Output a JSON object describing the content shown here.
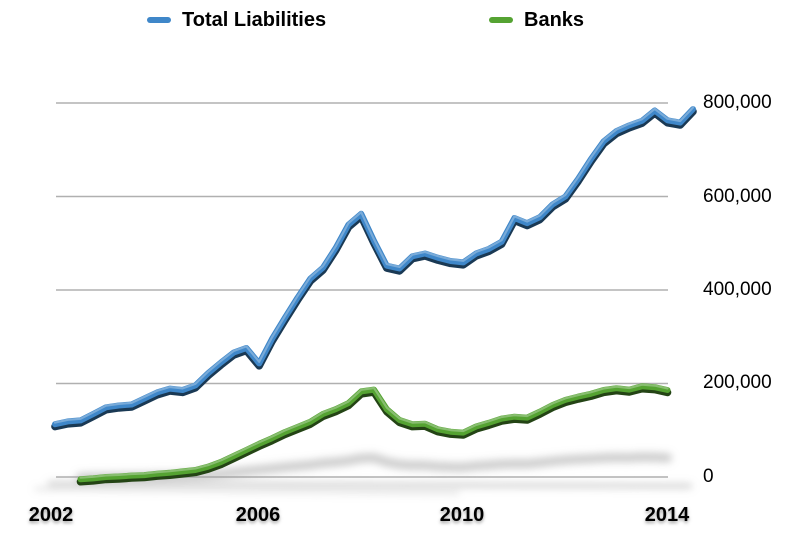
{
  "chart_data": {
    "type": "line",
    "title": "",
    "background_color": "#ffffff",
    "grid": true,
    "gridline_color": "#b0b0b0",
    "legend_position": "top",
    "x_axis": {
      "unit": "quarter",
      "start_label": "2002Q1",
      "ticks": [
        {
          "label": "2002",
          "quarter_index": 0
        },
        {
          "label": "2006",
          "quarter_index": 16
        },
        {
          "label": "2010",
          "quarter_index": 32
        },
        {
          "label": "2014",
          "quarter_index": 48
        }
      ]
    },
    "y_axis": {
      "min": 0,
      "max": 800000,
      "gridline_values": [
        800000,
        600000,
        400000,
        200000,
        0
      ],
      "tick_labels": [
        "800,000",
        "600,000",
        "400,000",
        "200,000",
        "0"
      ],
      "labels_position": "right"
    },
    "series": [
      {
        "name": "Total Liabilities",
        "color": "#3f87c9",
        "start_quarter_index": 0,
        "values": [
          113000,
          119000,
          121000,
          135000,
          149000,
          153000,
          155000,
          168000,
          181000,
          189000,
          186000,
          196000,
          222000,
          245000,
          266000,
          276000,
          243000,
          295000,
          340000,
          383000,
          424000,
          448000,
          490000,
          540000,
          563000,
          505000,
          452000,
          446000,
          472000,
          478000,
          469000,
          462000,
          459000,
          478000,
          488000,
          503000,
          554000,
          543000,
          556000,
          583000,
          600000,
          638000,
          680000,
          718000,
          740000,
          752000,
          762000,
          784000,
          763000,
          758000,
          787000
        ]
      },
      {
        "name": "Banks",
        "color": "#55a332",
        "start_quarter_index": 2,
        "values": [
          -5000,
          -3000,
          0,
          1000,
          3000,
          4000,
          7000,
          9000,
          12000,
          15000,
          22000,
          32000,
          45000,
          58000,
          71000,
          83000,
          96000,
          107000,
          118000,
          135000,
          145000,
          158000,
          183000,
          187000,
          145000,
          122000,
          113000,
          114000,
          102000,
          97000,
          95000,
          108000,
          116000,
          125000,
          129000,
          127000,
          140000,
          154000,
          165000,
          172000,
          178000,
          186000,
          190000,
          187000,
          194000,
          192000,
          186000
        ]
      }
    ]
  }
}
